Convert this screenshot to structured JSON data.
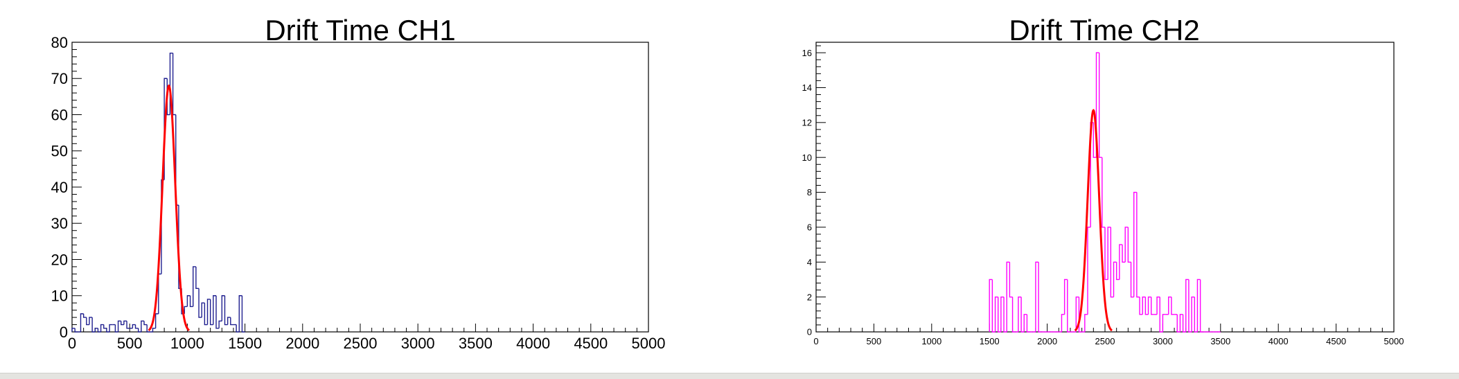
{
  "chart_data": [
    {
      "type": "histogram",
      "title": "Drift Time CH1",
      "xlim": [
        0,
        5000
      ],
      "ylim": [
        0,
        80
      ],
      "x_ticks": [
        0,
        500,
        1000,
        1500,
        2000,
        2500,
        3000,
        3500,
        4000,
        4500,
        5000
      ],
      "y_ticks": [
        0,
        10,
        20,
        30,
        40,
        50,
        60,
        70,
        80
      ],
      "bin_width": 25,
      "histogram_color": "#1f1f8f",
      "bins": [
        [
          0,
          1
        ],
        [
          25,
          0
        ],
        [
          50,
          0
        ],
        [
          75,
          5
        ],
        [
          100,
          4
        ],
        [
          125,
          2
        ],
        [
          150,
          4
        ],
        [
          175,
          0
        ],
        [
          200,
          1
        ],
        [
          225,
          0
        ],
        [
          250,
          2
        ],
        [
          275,
          1
        ],
        [
          300,
          0
        ],
        [
          325,
          2
        ],
        [
          350,
          2
        ],
        [
          375,
          0
        ],
        [
          400,
          3
        ],
        [
          425,
          2
        ],
        [
          450,
          3
        ],
        [
          475,
          1
        ],
        [
          500,
          1
        ],
        [
          525,
          2
        ],
        [
          550,
          1
        ],
        [
          575,
          0
        ],
        [
          600,
          3
        ],
        [
          625,
          2
        ],
        [
          650,
          0
        ],
        [
          675,
          0
        ],
        [
          700,
          1
        ],
        [
          725,
          5
        ],
        [
          750,
          16
        ],
        [
          775,
          42
        ],
        [
          800,
          70
        ],
        [
          825,
          60
        ],
        [
          850,
          77
        ],
        [
          875,
          60
        ],
        [
          900,
          35
        ],
        [
          925,
          12
        ],
        [
          950,
          5
        ],
        [
          975,
          7
        ],
        [
          1000,
          10
        ],
        [
          1025,
          7
        ],
        [
          1050,
          18
        ],
        [
          1075,
          12
        ],
        [
          1100,
          4
        ],
        [
          1125,
          8
        ],
        [
          1150,
          2
        ],
        [
          1175,
          9
        ],
        [
          1200,
          2
        ],
        [
          1225,
          10
        ],
        [
          1250,
          1
        ],
        [
          1275,
          3
        ],
        [
          1300,
          10
        ],
        [
          1325,
          2
        ],
        [
          1350,
          4
        ],
        [
          1375,
          2
        ],
        [
          1400,
          2
        ],
        [
          1425,
          0
        ],
        [
          1450,
          10
        ],
        [
          1475,
          0
        ]
      ],
      "fit": {
        "function": "gaussian",
        "color": "#ff0000",
        "amplitude": 68,
        "mean": 840,
        "sigma": 55
      }
    },
    {
      "type": "histogram",
      "title": "Drift Time CH2",
      "xlim": [
        0,
        5000
      ],
      "ylim": [
        0,
        16.6
      ],
      "x_ticks": [
        0,
        500,
        1000,
        1500,
        2000,
        2500,
        3000,
        3500,
        4000,
        4500,
        5000
      ],
      "y_ticks": [
        0,
        2,
        4,
        6,
        8,
        10,
        12,
        14,
        16
      ],
      "bin_width": 25,
      "histogram_color": "#ff00ff",
      "bins": [
        [
          1500,
          3
        ],
        [
          1525,
          0
        ],
        [
          1550,
          2
        ],
        [
          1575,
          0
        ],
        [
          1600,
          2
        ],
        [
          1625,
          0
        ],
        [
          1650,
          4
        ],
        [
          1675,
          2
        ],
        [
          1700,
          0
        ],
        [
          1725,
          0
        ],
        [
          1750,
          2
        ],
        [
          1775,
          0
        ],
        [
          1800,
          1
        ],
        [
          1825,
          0
        ],
        [
          1850,
          0
        ],
        [
          1875,
          0
        ],
        [
          1900,
          4
        ],
        [
          1925,
          0
        ],
        [
          1950,
          0
        ],
        [
          1975,
          0
        ],
        [
          2000,
          0
        ],
        [
          2025,
          0
        ],
        [
          2050,
          0
        ],
        [
          2075,
          0
        ],
        [
          2100,
          0
        ],
        [
          2125,
          1
        ],
        [
          2150,
          3
        ],
        [
          2175,
          0
        ],
        [
          2200,
          0
        ],
        [
          2225,
          0
        ],
        [
          2250,
          2
        ],
        [
          2275,
          0
        ],
        [
          2300,
          0
        ],
        [
          2325,
          1
        ],
        [
          2350,
          6
        ],
        [
          2375,
          12
        ],
        [
          2400,
          10
        ],
        [
          2425,
          16
        ],
        [
          2450,
          10
        ],
        [
          2475,
          6
        ],
        [
          2500,
          3
        ],
        [
          2525,
          6
        ],
        [
          2550,
          2
        ],
        [
          2575,
          4
        ],
        [
          2600,
          3
        ],
        [
          2625,
          5
        ],
        [
          2650,
          4
        ],
        [
          2675,
          6
        ],
        [
          2700,
          4
        ],
        [
          2725,
          2
        ],
        [
          2750,
          8
        ],
        [
          2775,
          2
        ],
        [
          2800,
          1
        ],
        [
          2825,
          2
        ],
        [
          2850,
          1
        ],
        [
          2875,
          2
        ],
        [
          2900,
          1
        ],
        [
          2925,
          1
        ],
        [
          2950,
          2
        ],
        [
          2975,
          0
        ],
        [
          3000,
          1
        ],
        [
          3025,
          1
        ],
        [
          3050,
          2
        ],
        [
          3075,
          1
        ],
        [
          3100,
          1
        ],
        [
          3125,
          0
        ],
        [
          3150,
          1
        ],
        [
          3175,
          0
        ],
        [
          3200,
          3
        ],
        [
          3225,
          0
        ],
        [
          3250,
          2
        ],
        [
          3275,
          0
        ],
        [
          3300,
          3
        ],
        [
          3325,
          0
        ],
        [
          3350,
          0
        ],
        [
          3375,
          0
        ],
        [
          3400,
          0
        ],
        [
          3425,
          0
        ],
        [
          3450,
          0
        ],
        [
          3475,
          0
        ]
      ],
      "fit": {
        "function": "gaussian",
        "color": "#ff0000",
        "amplitude": 12.7,
        "mean": 2400,
        "sigma": 50
      }
    }
  ]
}
